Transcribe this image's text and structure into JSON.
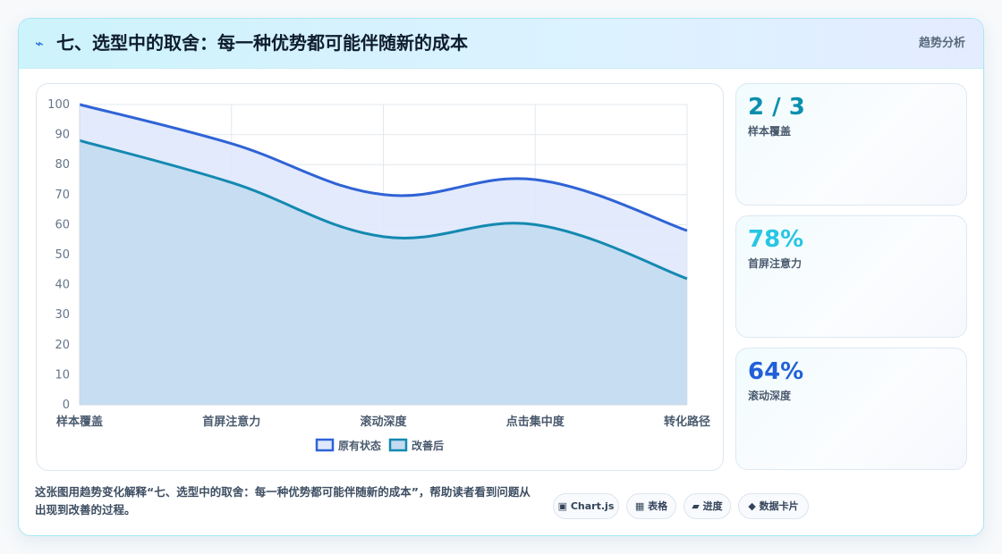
{
  "header": {
    "icon": "pulse-icon",
    "title": "七、选型中的取舍：每一种优势都可能伴随新的成本",
    "tag": "趋势分析"
  },
  "chart_data": {
    "type": "area",
    "categories": [
      "样本覆盖",
      "首屏注意力",
      "滚动深度",
      "点击集中度",
      "转化路径"
    ],
    "series": [
      {
        "name": "原有状态",
        "values": [
          100,
          87,
          70,
          75,
          58
        ],
        "color": "#2f63d6",
        "fill": "#dfe8fc"
      },
      {
        "name": "改善后",
        "values": [
          88,
          74,
          56,
          60,
          42
        ],
        "color": "#1489b0",
        "fill": "#c3dbf1"
      }
    ],
    "ylim": [
      0,
      100
    ],
    "yticks": [
      "0",
      "10",
      "20",
      "30",
      "40",
      "50",
      "60",
      "70",
      "80",
      "90",
      "100"
    ],
    "grid": true,
    "legend": "bottom"
  },
  "stats": [
    {
      "value": "2 / 3",
      "label": "样本覆盖",
      "color": "#0b8fae"
    },
    {
      "value": "78%",
      "label": "首屏注意力",
      "color": "#27c6e3"
    },
    {
      "value": "64%",
      "label": "滚动深度",
      "color": "#2260d8"
    }
  ],
  "description": "这张图用趋势变化解释“七、选型中的取舍：每一种优势都可能伴随新的成本”，帮助读者看到问题从出现到改善的过程。",
  "pills": [
    {
      "icon": "▣",
      "label": "Chart.js"
    },
    {
      "icon": "▦",
      "label": "表格"
    },
    {
      "icon": "▰",
      "label": "进度"
    },
    {
      "icon": "◆",
      "label": "数据卡片"
    }
  ]
}
